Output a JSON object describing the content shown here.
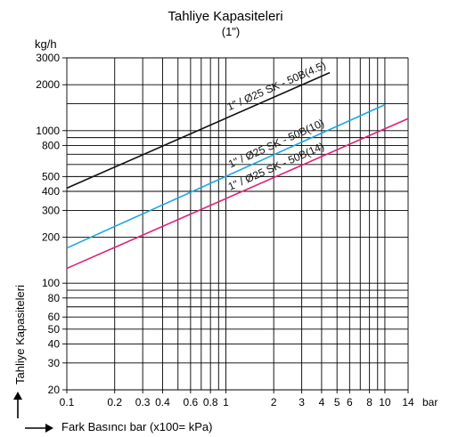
{
  "chart_data": {
    "type": "line",
    "title": "Tahliye Kapasiteleri",
    "subtitle": "(1\")",
    "y_unit": "kg/h",
    "x_unit": "bar",
    "xlabel": "Fark Basıncı bar (x100= kPa)",
    "ylabel": "Tahliye Kapasiteleri",
    "x_scale": "log",
    "y_scale": "log",
    "xlim": [
      0.1,
      14
    ],
    "ylim": [
      20,
      3000
    ],
    "grid": true,
    "x_ticks": [
      0.1,
      0.2,
      0.3,
      0.4,
      0.6,
      0.8,
      1,
      2,
      3,
      4,
      5,
      6,
      8,
      10,
      14
    ],
    "x_tick_labels": [
      "0.1",
      "0.2",
      "0.3",
      "0.4",
      "0.6",
      "0.8",
      "1",
      "2",
      "3",
      "4",
      "5",
      "6",
      "8",
      "10",
      "14"
    ],
    "x_minor_grid": [
      0.5,
      0.7,
      0.9,
      7,
      9
    ],
    "y_ticks": [
      20,
      30,
      40,
      50,
      60,
      80,
      100,
      200,
      300,
      400,
      500,
      800,
      1000,
      2000,
      3000
    ],
    "y_tick_labels": [
      "20",
      "30",
      "40",
      "50",
      "60",
      "80",
      "100",
      "200",
      "300",
      "400",
      "500",
      "800",
      "1000",
      "2000",
      "3000"
    ],
    "y_minor_grid": [
      70,
      90,
      600,
      700,
      900,
      1500
    ],
    "series": [
      {
        "name": "1\" / Ø25 SK - 50B(4.5)",
        "color": "#111111",
        "x": [
          0.1,
          4.5
        ],
        "y": [
          420,
          2400
        ]
      },
      {
        "name": "1\" / Ø25 SK - 50B(10)",
        "color": "#1aa7e0",
        "x": [
          0.1,
          10
        ],
        "y": [
          170,
          1480
        ]
      },
      {
        "name": "1\" / Ø25 SK - 50B(14)",
        "color": "#e0207a",
        "x": [
          0.1,
          14
        ],
        "y": [
          125,
          1200
        ]
      }
    ]
  }
}
